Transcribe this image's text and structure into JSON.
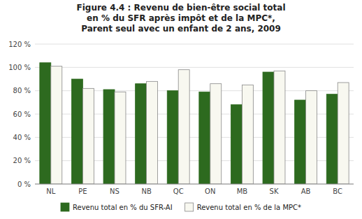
{
  "chart_data": {
    "type": "bar",
    "title": "Figure 4.4 : Revenu de bien-être social total\nen % du SFR après impôt et de la MPC*,\nParent seul avec un enfant de 2 ans, 2009",
    "categories": [
      "NL",
      "PE",
      "NS",
      "NB",
      "QC",
      "ON",
      "MB",
      "SK",
      "AB",
      "BC"
    ],
    "series": [
      {
        "name": "Revenu total en % du SFR-AI",
        "color": "#2d6a1f",
        "values": [
          104,
          90,
          81,
          86,
          80,
          79,
          68,
          96,
          72,
          77
        ]
      },
      {
        "name": "Revenu total en % de la MPC*",
        "color": "#f8f8f0",
        "values": [
          101,
          82,
          79,
          88,
          98,
          86,
          85,
          97,
          80,
          87
        ]
      }
    ],
    "ylim": [
      0,
      120
    ],
    "yticks": [
      {
        "value": 0,
        "label": "0 %"
      },
      {
        "value": 20,
        "label": "20 %"
      },
      {
        "value": 40,
        "label": "40 %"
      },
      {
        "value": 60,
        "label": "60 %"
      },
      {
        "value": 80,
        "label": "80 %"
      },
      {
        "value": 100,
        "label": "100 %"
      },
      {
        "value": 120,
        "label": "120 %"
      }
    ],
    "grid": true,
    "legend": "bottom"
  }
}
